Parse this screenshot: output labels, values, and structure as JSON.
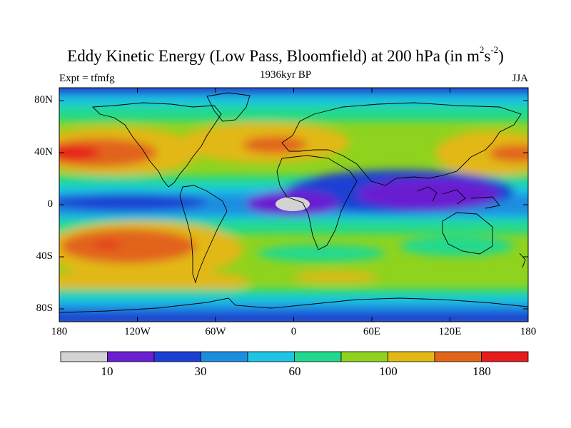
{
  "title_text": "Eddy Kinetic Energy (Low Pass, Bloomfield) at 200 hPa (in m",
  "title_sup1": "2",
  "title_mid": "s",
  "title_sup2": "-2",
  "title_end": ")",
  "subtitle_left": "Expt = tfmfg",
  "subtitle_center": "1936kyr BP",
  "subtitle_right": "JJA",
  "lat_labels": [
    "80N",
    "40N",
    "0",
    "40S",
    "80S"
  ],
  "lon_labels": [
    "180",
    "120W",
    "60W",
    "0",
    "60E",
    "120E",
    "180"
  ],
  "colorbar": {
    "colors": [
      "#d3d3d3",
      "#6a1fd1",
      "#1c3fd3",
      "#1c8ee0",
      "#1ec4e3",
      "#20d98e",
      "#8fd31e",
      "#e2b814",
      "#e2641a",
      "#e61c1c"
    ],
    "labels": [
      "10",
      "30",
      "60",
      "100",
      "180"
    ]
  },
  "legend_palette": {
    "gray": "#d3d3d3",
    "purple": "#6a1fd1",
    "blue": "#1c3fd3",
    "mid_blue": "#1c8ee0",
    "cyan": "#1ec4e3",
    "teal": "#20d98e",
    "green": "#8fd31e",
    "yellow": "#e2b814",
    "orange": "#e2641a",
    "red": "#e61c1c"
  }
}
